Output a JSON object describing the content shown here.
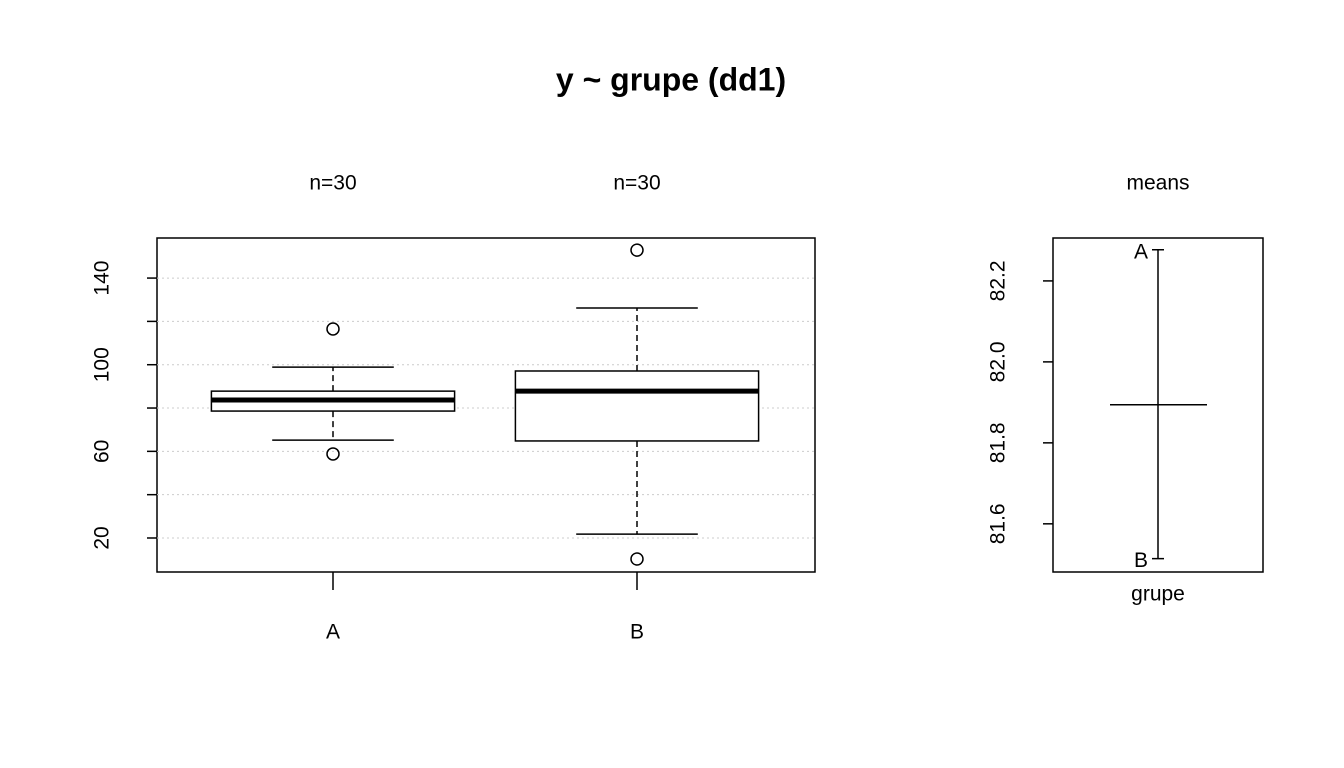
{
  "title": "y ~ grupe (dd1)",
  "chart_data": [
    {
      "type": "boxplot",
      "categories": [
        "A",
        "B"
      ],
      "group_labels": [
        "n=30",
        "n=30"
      ],
      "boxes": [
        {
          "whisker_low": 65.2,
          "q1": 78.6,
          "median": 83.7,
          "q3": 87.8,
          "whisker_high": 98.9,
          "outliers": [
            116.5,
            58.8
          ]
        },
        {
          "whisker_low": 21.8,
          "q1": 64.8,
          "median": 87.8,
          "q3": 97.1,
          "whisker_high": 126.2,
          "outliers": [
            152.9,
            10.3
          ]
        }
      ],
      "ylim": [
        4.3,
        158.5
      ],
      "yticks": [
        20,
        60,
        100,
        140
      ],
      "yticks_unlabeled": [
        40,
        80,
        120
      ],
      "grid": true
    },
    {
      "type": "means",
      "title": "means",
      "xlabel": "grupe",
      "labels": [
        "A",
        "B"
      ],
      "values": [
        82.277,
        81.514
      ],
      "mean": 81.894,
      "ylim": [
        81.481,
        82.306
      ],
      "yticks": [
        81.6,
        81.8,
        {
          "value": 82,
          "label": "82.0"
        },
        82.2
      ]
    }
  ]
}
